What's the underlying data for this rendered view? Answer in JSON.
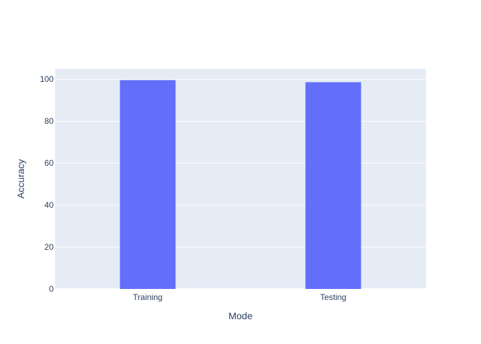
{
  "chart_data": {
    "type": "bar",
    "categories": [
      "Training",
      "Testing"
    ],
    "values": [
      99.6,
      98.6
    ],
    "title": "",
    "xlabel": "Mode",
    "ylabel": "Accuracy",
    "ylim": [
      0,
      105
    ],
    "yticks": [
      0,
      20,
      40,
      60,
      80,
      100
    ],
    "grid": true,
    "legend": "none",
    "colors": {
      "bar": "#636efa",
      "plot_bg": "#e5ecf6",
      "grid": "#ffffff",
      "text": "#2a3f5f"
    }
  }
}
